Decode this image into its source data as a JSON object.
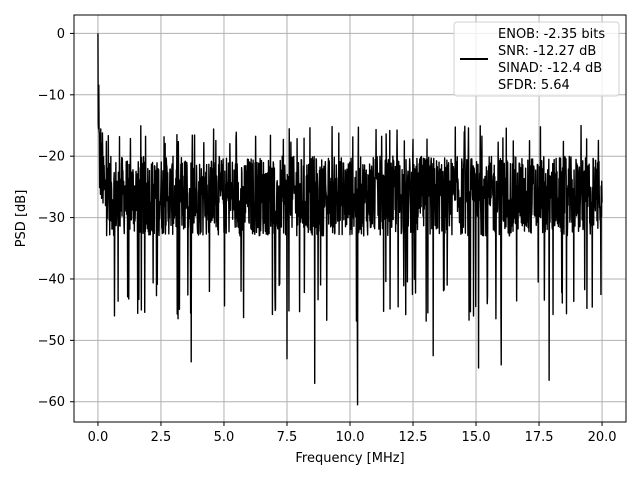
{
  "chart_data": {
    "type": "line",
    "xlabel": "Frequency [MHz]",
    "ylabel": "PSD [dB]",
    "xlim": [
      -0.95,
      20.95
    ],
    "ylim": [
      -63.3,
      3.0
    ],
    "xticks": [
      0.0,
      2.5,
      5.0,
      7.5,
      10.0,
      12.5,
      15.0,
      17.5,
      20.0
    ],
    "xtick_labels": [
      "0.0",
      "2.5",
      "5.0",
      "7.5",
      "10.0",
      "12.5",
      "15.0",
      "17.5",
      "20.0"
    ],
    "yticks": [
      0,
      -10,
      -20,
      -30,
      -40,
      -50,
      -60
    ],
    "ytick_labels": [
      "0",
      "−10",
      "−20",
      "−30",
      "−40",
      "−50",
      "−60"
    ],
    "grid": true,
    "legend_position": "upper-right",
    "series": [
      {
        "color": "#000000",
        "x_start": 0.0,
        "x_end": 20.0,
        "noise_floor_db": -28,
        "noise_band_db": [
          -40,
          -20
        ],
        "peak": {
          "x": 0.0,
          "y": 0.0
        },
        "notable_dips": [
          {
            "x": 3.7,
            "y": -53.5
          },
          {
            "x": 7.5,
            "y": -53.0
          },
          {
            "x": 8.6,
            "y": -57.0
          },
          {
            "x": 10.3,
            "y": -60.5
          },
          {
            "x": 13.3,
            "y": -52.5
          },
          {
            "x": 15.1,
            "y": -54.5
          },
          {
            "x": 16.0,
            "y": -54.0
          },
          {
            "x": 17.9,
            "y": -56.5
          }
        ]
      }
    ],
    "legend_lines": [
      "ENOB: -2.35 bits",
      "SNR: -12.27 dB",
      "SINAD: -12.4 dB",
      "SFDR: 5.64"
    ]
  }
}
